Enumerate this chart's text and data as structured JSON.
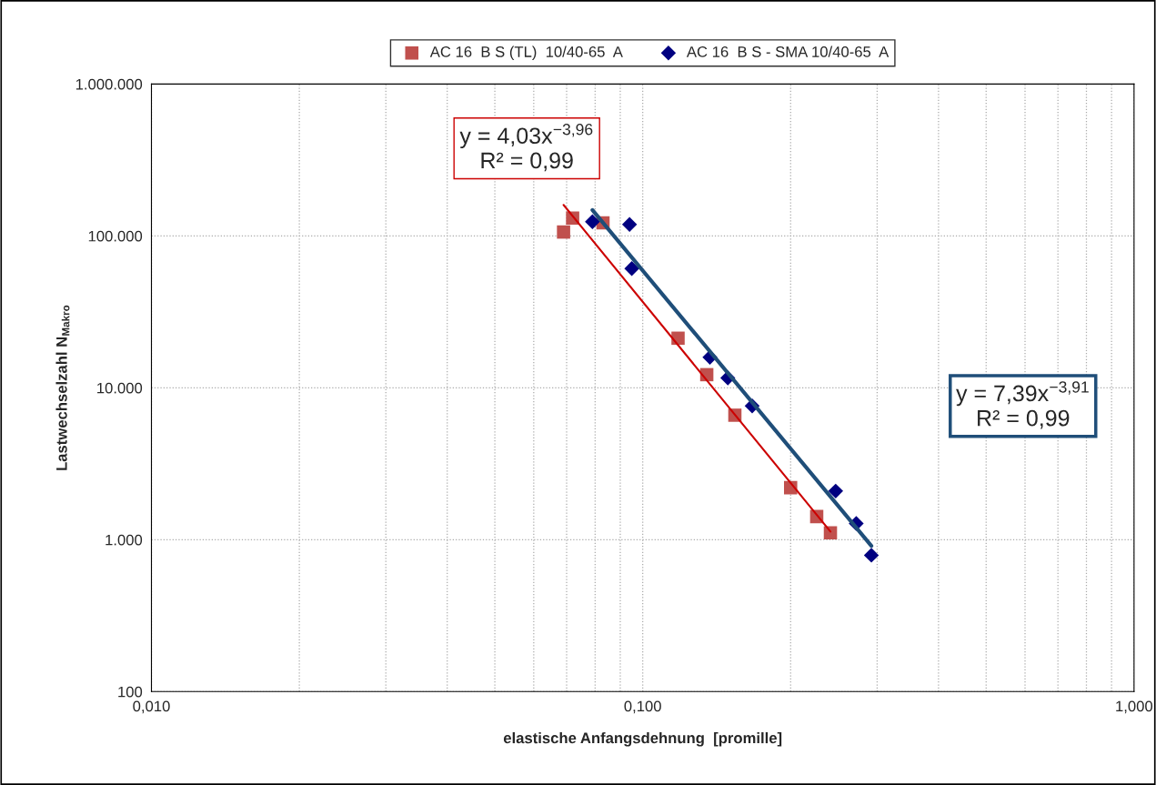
{
  "chart_data": {
    "type": "scatter",
    "xlabel": "elastische Anfangsdehnung  [promille]",
    "ylabel": "Lastwechselzahl N$_{Makro}$",
    "log": "xy",
    "grid": true,
    "legend": "top",
    "xlim": [
      0.01,
      1.0
    ],
    "xticks": [
      {
        "value": 0.01,
        "label": "0,010"
      },
      {
        "value": 0.1,
        "label": "0,100"
      },
      {
        "value": 1.0,
        "label": "1,000"
      }
    ],
    "ylim": [
      100,
      1000000
    ],
    "yticks": [
      100,
      {
        "value": 1000,
        "label": "1.000"
      },
      {
        "value": 10000,
        "label": "10.000"
      },
      {
        "value": 100000,
        "label": "100.000"
      },
      {
        "value": 1000000,
        "label": "1.000.000"
      }
    ],
    "series": [
      {
        "name": "AC 16  B S (TL)  10/40-65  A",
        "marker": "square",
        "color": "#c0504d",
        "x": [
          0.069,
          0.072,
          0.083,
          0.118,
          0.135,
          0.154,
          0.2,
          0.226,
          0.241
        ],
        "values": [
          106000,
          131000,
          122000,
          21200,
          12200,
          6600,
          2200,
          1420,
          1110
        ]
      },
      {
        "name": "AC 16  B S - SMA 10/40-65  A",
        "marker": "diamond",
        "color": "#000080",
        "x": [
          0.079,
          0.094,
          0.095,
          0.137,
          0.149,
          0.167,
          0.247,
          0.272,
          0.292
        ],
        "values": [
          124000,
          119000,
          61000,
          15900,
          11600,
          7600,
          2090,
          1280,
          790
        ]
      },
      {
        "type": "line",
        "color": "#cc0000",
        "x": [
          0.069,
          0.241
        ],
        "values": [
          160000,
          1130
        ]
      },
      {
        "type": "line",
        "color": "#1f4e79",
        "x": [
          0.079,
          0.292
        ],
        "values": [
          148000,
          910
        ]
      }
    ],
    "annotations": [
      "y = 4,03x$^{−3,96}$\nR² = 0,99",
      "y = 7,39x$^{−3,91}$\nR² = 0,99"
    ]
  }
}
